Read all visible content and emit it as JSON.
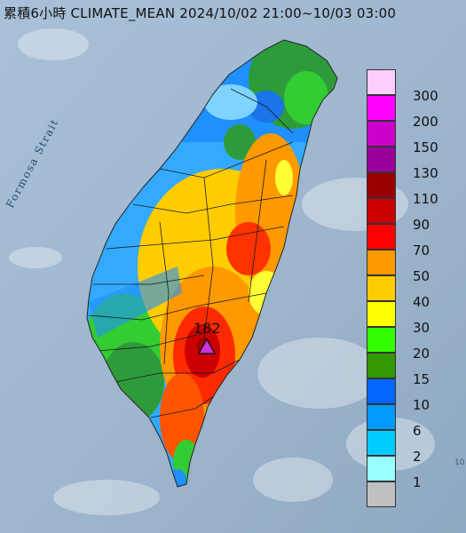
{
  "title": "累積6小時 CLIMATE_MEAN 2024/10/02 21:00~10/03 03:00",
  "sea_label": "Formosa Strait",
  "peak": {
    "value": "182",
    "marker_color": "#cc33dd"
  },
  "corner_text": "10",
  "legend": {
    "items": [
      {
        "label": "300",
        "color": "#ffccff"
      },
      {
        "label": "200",
        "color": "#ff00ff"
      },
      {
        "label": "150",
        "color": "#cc00cc"
      },
      {
        "label": "130",
        "color": "#990099"
      },
      {
        "label": "110",
        "color": "#990000"
      },
      {
        "label": "90",
        "color": "#cc0000"
      },
      {
        "label": "70",
        "color": "#ff0000"
      },
      {
        "label": "50",
        "color": "#ff9900"
      },
      {
        "label": "40",
        "color": "#ffcc00"
      },
      {
        "label": "30",
        "color": "#ffff00"
      },
      {
        "label": "20",
        "color": "#33ff00"
      },
      {
        "label": "15",
        "color": "#339900"
      },
      {
        "label": "10",
        "color": "#0066ff"
      },
      {
        "label": "6",
        "color": "#0099ff"
      },
      {
        "label": "2",
        "color": "#00ccff"
      },
      {
        "label": "1",
        "color": "#99ffff"
      },
      {
        "label": "",
        "color": "#c0c0c0"
      }
    ]
  }
}
